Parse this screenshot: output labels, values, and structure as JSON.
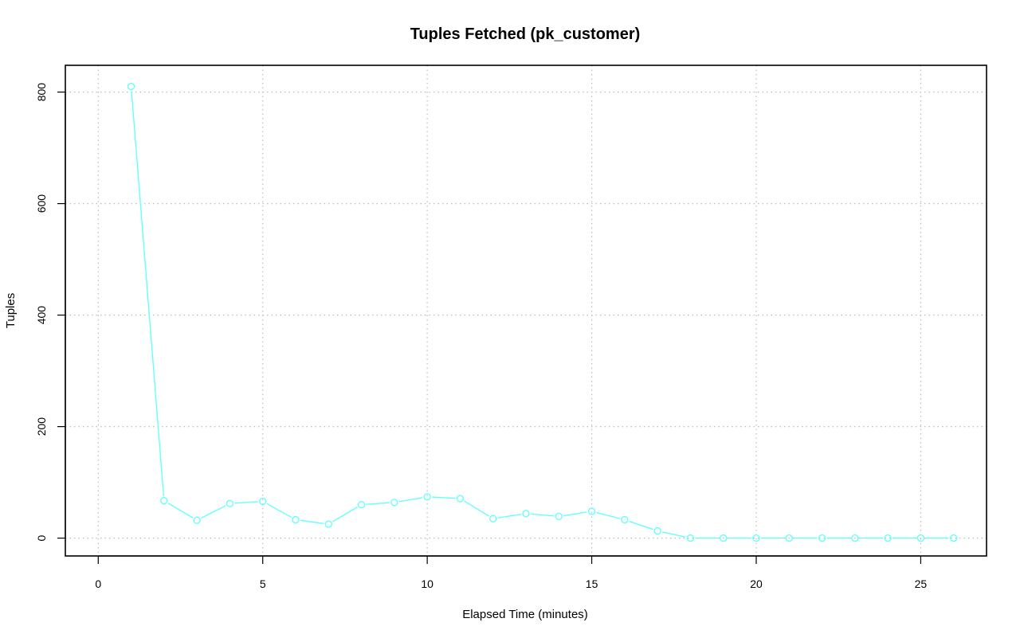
{
  "chart_data": {
    "type": "line",
    "title": "Tuples Fetched (pk_customer)",
    "xlabel": "Elapsed Time (minutes)",
    "ylabel": "Tuples",
    "xlim": [
      -1,
      27
    ],
    "ylim": [
      -32,
      848
    ],
    "xticks": [
      0,
      5,
      10,
      15,
      20,
      25
    ],
    "yticks": [
      0,
      200,
      400,
      600,
      800
    ],
    "grid": true,
    "series": [
      {
        "color": "#66ffff",
        "marker": "open-circle",
        "x": [
          1,
          2,
          3,
          4,
          5,
          6,
          7,
          8,
          9,
          10,
          11,
          12,
          13,
          14,
          15,
          16,
          17,
          18,
          19,
          20,
          21,
          22,
          23,
          24,
          25,
          26
        ],
        "y": [
          810,
          67,
          32,
          62,
          66,
          33,
          25,
          60,
          64,
          74,
          71,
          35,
          44,
          39,
          48,
          33,
          13,
          0,
          0,
          0,
          0,
          0,
          0,
          0,
          0,
          0
        ]
      }
    ]
  }
}
